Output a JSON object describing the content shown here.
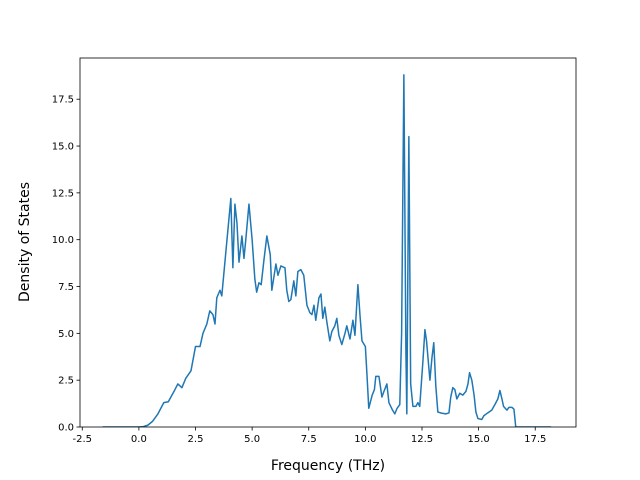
{
  "chart_data": {
    "type": "line",
    "xlabel": "Frequency (THz)",
    "ylabel": "Density of States",
    "x": [
      -1.6,
      0.0,
      0.2,
      0.4,
      0.6,
      0.84,
      1.1,
      1.3,
      1.55,
      1.72,
      1.9,
      2.07,
      2.3,
      2.5,
      2.7,
      2.83,
      3.0,
      3.13,
      3.27,
      3.36,
      3.44,
      3.58,
      3.66,
      3.89,
      4.06,
      4.15,
      4.24,
      4.33,
      4.42,
      4.55,
      4.64,
      4.72,
      4.86,
      5.0,
      5.12,
      5.2,
      5.3,
      5.4,
      5.52,
      5.65,
      5.8,
      5.87,
      6.05,
      6.14,
      6.27,
      6.45,
      6.53,
      6.62,
      6.71,
      6.84,
      6.93,
      7.02,
      7.15,
      7.28,
      7.42,
      7.55,
      7.64,
      7.73,
      7.81,
      7.95,
      8.04,
      8.12,
      8.21,
      8.3,
      8.43,
      8.52,
      8.65,
      8.74,
      8.83,
      8.96,
      9.1,
      9.18,
      9.32,
      9.45,
      9.54,
      9.67,
      9.76,
      9.85,
      10.0,
      10.07,
      10.15,
      10.3,
      10.4,
      10.46,
      10.6,
      10.73,
      10.82,
      10.95,
      11.04,
      11.2,
      11.3,
      11.4,
      11.52,
      11.6,
      11.7,
      11.79,
      11.83,
      11.92,
      12.0,
      12.1,
      12.23,
      12.32,
      12.4,
      12.54,
      12.63,
      12.7,
      12.85,
      12.94,
      13.02,
      13.11,
      13.2,
      13.33,
      13.55,
      13.69,
      13.77,
      13.86,
      13.95,
      14.04,
      14.17,
      14.3,
      14.44,
      14.53,
      14.6,
      14.7,
      14.8,
      14.88,
      14.97,
      15.14,
      15.23,
      15.4,
      15.58,
      15.72,
      15.85,
      15.94,
      16.03,
      16.1,
      16.25,
      16.34,
      16.47,
      16.56,
      16.64,
      18.2
    ],
    "series": [
      {
        "color": "#1f77b4",
        "values": [
          0,
          0,
          0.02,
          0.1,
          0.3,
          0.7,
          1.3,
          1.35,
          1.9,
          2.3,
          2.1,
          2.6,
          3.0,
          4.3,
          4.3,
          5.0,
          5.5,
          6.2,
          6.0,
          5.5,
          6.9,
          7.3,
          7.0,
          10.0,
          12.2,
          8.5,
          11.9,
          10.9,
          8.8,
          10.2,
          9.0,
          10.0,
          11.9,
          10.0,
          7.9,
          7.2,
          7.7,
          7.6,
          8.9,
          10.2,
          9.2,
          7.3,
          8.7,
          8.1,
          8.6,
          8.5,
          7.3,
          6.7,
          6.8,
          7.8,
          7.0,
          8.3,
          8.4,
          8.1,
          6.5,
          6.1,
          6.0,
          6.5,
          5.7,
          6.9,
          7.1,
          5.8,
          6.4,
          5.6,
          4.6,
          5.1,
          5.4,
          5.8,
          4.9,
          4.4,
          5.0,
          5.4,
          4.7,
          5.7,
          4.9,
          7.6,
          6.0,
          4.6,
          4.3,
          2.8,
          1.0,
          1.7,
          2.0,
          2.7,
          2.7,
          1.6,
          1.9,
          2.3,
          1.3,
          0.9,
          0.7,
          1.0,
          1.2,
          5.0,
          18.8,
          4.0,
          0.7,
          15.5,
          2.3,
          1.1,
          1.1,
          1.3,
          1.1,
          3.5,
          5.2,
          4.6,
          2.5,
          3.7,
          4.5,
          2.2,
          0.8,
          0.75,
          0.7,
          0.75,
          1.6,
          2.1,
          2.0,
          1.5,
          1.8,
          1.7,
          1.9,
          2.3,
          2.9,
          2.5,
          1.7,
          0.8,
          0.45,
          0.4,
          0.6,
          0.75,
          0.9,
          1.2,
          1.5,
          1.95,
          1.5,
          1.1,
          0.9,
          1.05,
          1.05,
          0.95,
          0,
          0
        ]
      }
    ],
    "xlim": [
      -2.6,
      19.3
    ],
    "ylim": [
      0,
      19.7
    ],
    "xticks": [
      -2.5,
      {
        "value": 0,
        "label": "0.0"
      },
      2.5,
      {
        "value": 5,
        "label": "5.0"
      },
      7.5,
      {
        "value": 10,
        "label": "10.0"
      },
      12.5,
      {
        "value": 15,
        "label": "15.0"
      },
      17.5
    ],
    "yticks": [
      {
        "value": 0,
        "label": "0.0"
      },
      2.5,
      {
        "value": 5,
        "label": "5.0"
      },
      7.5,
      {
        "value": 10,
        "label": "10.0"
      },
      12.5,
      {
        "value": 15,
        "label": "15.0"
      },
      17.5
    ],
    "grid": false
  }
}
